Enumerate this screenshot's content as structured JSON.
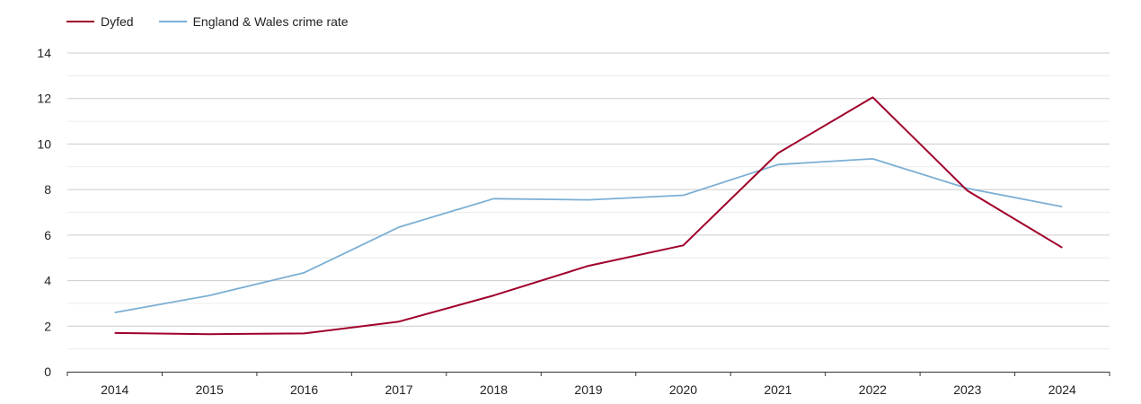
{
  "chart_data": {
    "type": "line",
    "categories": [
      "2014",
      "2015",
      "2016",
      "2017",
      "2018",
      "2019",
      "2020",
      "2021",
      "2022",
      "2023",
      "2024"
    ],
    "series": [
      {
        "name": "Dyfed",
        "color": "#a0002a",
        "values": [
          1.7,
          1.65,
          1.68,
          2.2,
          3.35,
          4.65,
          5.55,
          9.6,
          12.05,
          7.95,
          5.45
        ]
      },
      {
        "name": "England & Wales crime rate",
        "color": "#7bafd4",
        "values": [
          2.6,
          3.35,
          4.35,
          6.35,
          7.6,
          7.55,
          7.75,
          9.1,
          9.35,
          8.05,
          7.25
        ]
      }
    ],
    "ylim": [
      0,
      14
    ],
    "yticks": [
      0,
      2,
      4,
      6,
      8,
      10,
      12,
      14
    ],
    "grid": true,
    "legend_position": "top-left"
  }
}
